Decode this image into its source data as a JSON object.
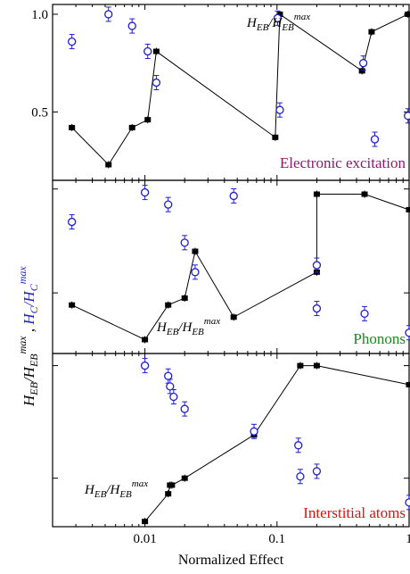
{
  "chart_data": {
    "type": "scatter",
    "x_scale": "log",
    "xlim": [
      0.002,
      1.0
    ],
    "xlabel": "Normalized Effect",
    "x_ticks": [
      {
        "value": 0.01,
        "label": "0.01"
      },
      {
        "value": 0.1,
        "label": "0.1"
      },
      {
        "value": 1,
        "label": "1"
      }
    ],
    "ylabel_parts": {
      "black": {
        "base": "H",
        "sub": "EB",
        "slash": "/",
        "base2": "H",
        "sub2": "EB",
        "sup2": "max"
      },
      "separator": " , ",
      "blue": {
        "base": "H",
        "sub": "C",
        "slash": "/",
        "base2": "H",
        "sub2": "C",
        "sup2": "max"
      }
    },
    "colors": {
      "eb_series": "#000000",
      "c_series": "#1f1fd0",
      "electronic": "#8b1a6b",
      "phonons": "#1a8a1a",
      "interstitial": "#e01010"
    },
    "panels": [
      {
        "label": "Electronic excitation",
        "label_color": "#8b1a6b",
        "ylim": [
          0.15,
          1.05
        ],
        "y_ticks": [
          {
            "value": 0.5,
            "label": "0.5"
          },
          {
            "value": 1.0,
            "label": "1.0"
          }
        ],
        "curve_label": {
          "base": "H",
          "sub": "EB",
          "slash": "/",
          "base2": "H",
          "sub2": "EB",
          "sup2": "max"
        },
        "series": [
          {
            "name": "H_EB/H_EB^max",
            "marker": "square",
            "connected": true,
            "x": [
              0.0028,
              0.0053,
              0.008,
              0.0105,
              0.0122,
              0.097,
              0.105,
              0.44,
              0.52,
              0.98
            ],
            "y": [
              0.42,
              0.23,
              0.42,
              0.46,
              0.81,
              0.37,
              1.0,
              0.71,
              0.91,
              1.0
            ]
          },
          {
            "name": "H_C/H_C^max",
            "marker": "circle",
            "connected": false,
            "x": [
              0.0028,
              0.0053,
              0.008,
              0.0105,
              0.0122,
              0.101,
              0.105,
              0.45,
              0.55,
              0.98
            ],
            "y": [
              0.86,
              1.0,
              0.94,
              0.81,
              0.65,
              0.98,
              0.51,
              0.75,
              0.36,
              0.48
            ]
          }
        ]
      },
      {
        "label": "Phonons",
        "label_color": "#1a8a1a",
        "ylim": [
          0.0,
          1.0
        ],
        "y_ticks": [
          {
            "value": 0.95,
            "label": ""
          },
          {
            "value": 0.35,
            "label": ""
          }
        ],
        "curve_label": {
          "base": "H",
          "sub": "EB",
          "slash": "/",
          "base2": "H",
          "sub2": "EB",
          "sup2": "max"
        },
        "series": [
          {
            "name": "H_EB/H_EB^max",
            "marker": "square",
            "connected": true,
            "x": [
              0.0028,
              0.01,
              0.015,
              0.02,
              0.024,
              0.047,
              0.2,
              0.2,
              0.46,
              1.0
            ],
            "y": [
              0.28,
              0.08,
              0.28,
              0.32,
              0.59,
              0.21,
              0.47,
              0.92,
              0.92,
              0.83
            ]
          },
          {
            "name": "H_C/H_C^max",
            "marker": "circle",
            "connected": false,
            "x": [
              0.0028,
              0.01,
              0.015,
              0.02,
              0.024,
              0.047,
              0.2,
              0.2,
              0.46,
              1.0
            ],
            "y": [
              0.76,
              0.93,
              0.86,
              0.64,
              0.47,
              0.91,
              0.51,
              0.26,
              0.23,
              0.12
            ]
          }
        ]
      },
      {
        "label": "Interstitial atoms",
        "label_color": "#e01010",
        "ylim": [
          0.0,
          1.0
        ],
        "y_ticks": [
          {
            "value": 0.93,
            "label": ""
          },
          {
            "value": 0.28,
            "label": ""
          }
        ],
        "curve_label": {
          "base": "H",
          "sub": "EB",
          "slash": "/",
          "base2": "H",
          "sub2": "EB",
          "sup2": "max"
        },
        "series": [
          {
            "name": "H_EB/H_EB^max",
            "marker": "square",
            "connected": true,
            "x": [
              0.01,
              0.015,
              0.0155,
              0.016,
              0.02,
              0.067,
              0.15,
              0.2,
              1.0
            ],
            "y": [
              0.03,
              0.19,
              0.24,
              0.24,
              0.28,
              0.53,
              0.93,
              0.93,
              0.82
            ]
          },
          {
            "name": "H_C/H_C^max",
            "marker": "circle",
            "connected": false,
            "x": [
              0.01,
              0.015,
              0.0155,
              0.0165,
              0.02,
              0.067,
              0.145,
              0.15,
              0.2,
              1.0
            ],
            "y": [
              0.93,
              0.87,
              0.81,
              0.75,
              0.68,
              0.55,
              0.47,
              0.29,
              0.32,
              0.14
            ]
          }
        ]
      }
    ]
  }
}
